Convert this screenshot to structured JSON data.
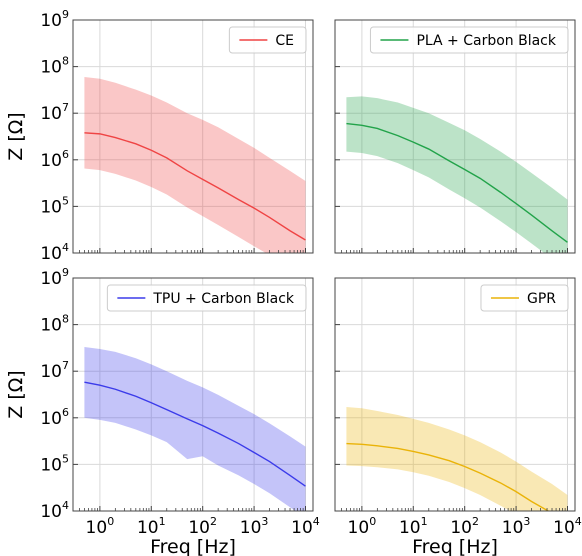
{
  "chart_data": [
    {
      "type": "area",
      "panel": "top-left",
      "series_name": "CE",
      "color": "#ef4444",
      "xscale": "log",
      "yscale": "log",
      "xlim": [
        0.3,
        14000
      ],
      "ylim": [
        10000,
        1000000000
      ],
      "xlabel": "",
      "ylabel": "Z [Ω]",
      "legend": "top-right",
      "grid": true,
      "x": [
        0.5,
        1,
        2,
        5,
        10,
        20,
        50,
        100,
        200,
        500,
        1000,
        2000,
        5000,
        10000
      ],
      "median": [
        3800000,
        3600000,
        3000000,
        2200000,
        1600000,
        1100000,
        580000,
        380000,
        250000,
        140000,
        92000,
        58000,
        30000,
        19000
      ],
      "upper": [
        60000000,
        55000000,
        45000000,
        32000000,
        24000000,
        17000000,
        10000000,
        7200000,
        5000000,
        2800000,
        1800000,
        1100000,
        580000,
        350000
      ],
      "lower": [
        650000,
        600000,
        500000,
        360000,
        260000,
        180000,
        95000,
        62000,
        40000,
        22000,
        14000,
        9000,
        5000,
        3000
      ]
    },
    {
      "type": "area",
      "panel": "top-right",
      "series_name": "PLA + Carbon Black",
      "color": "#22a34a",
      "xscale": "log",
      "yscale": "log",
      "xlim": [
        0.3,
        14000
      ],
      "ylim": [
        10000,
        1000000000
      ],
      "xlabel": "",
      "ylabel": "",
      "legend": "top-right",
      "grid": true,
      "x": [
        0.5,
        1,
        2,
        5,
        10,
        20,
        50,
        100,
        200,
        500,
        1000,
        2000,
        5000,
        10000
      ],
      "median": [
        6000000,
        5500000,
        4700000,
        3300000,
        2400000,
        1700000,
        950000,
        620000,
        400000,
        200000,
        115000,
        65000,
        30000,
        17000
      ],
      "upper": [
        22000000,
        23000000,
        21000000,
        17000000,
        13000000,
        10000000,
        6200000,
        4300000,
        2800000,
        1500000,
        900000,
        520000,
        250000,
        140000
      ],
      "lower": [
        1500000,
        1400000,
        1200000,
        850000,
        600000,
        420000,
        230000,
        150000,
        95000,
        48000,
        28000,
        16000,
        7500,
        4200
      ]
    },
    {
      "type": "area",
      "panel": "bottom-left",
      "series_name": "TPU + Carbon Black",
      "color": "#3b3bea",
      "xscale": "log",
      "yscale": "log",
      "xlim": [
        0.3,
        14000
      ],
      "ylim": [
        10000,
        1000000000
      ],
      "xlabel": "Freq [Hz]",
      "ylabel": "Z [Ω]",
      "legend": "top-right",
      "grid": true,
      "x": [
        0.5,
        1,
        2,
        5,
        10,
        20,
        50,
        100,
        200,
        500,
        1000,
        2000,
        5000,
        10000
      ],
      "median": [
        5800000,
        5000000,
        4100000,
        2900000,
        2100000,
        1500000,
        950000,
        680000,
        470000,
        280000,
        180000,
        115000,
        58000,
        34000
      ],
      "upper": [
        33000000,
        30000000,
        26000000,
        19000000,
        14000000,
        10000000,
        6200000,
        4500000,
        3100000,
        1800000,
        1200000,
        760000,
        400000,
        240000
      ],
      "lower": [
        1000000,
        900000,
        780000,
        560000,
        420000,
        300000,
        130000,
        150000,
        95000,
        58000,
        38000,
        24000,
        12000,
        7000
      ]
    },
    {
      "type": "area",
      "panel": "bottom-right",
      "series_name": "GPR",
      "color": "#eab308",
      "xscale": "log",
      "yscale": "log",
      "xlim": [
        0.3,
        14000
      ],
      "ylim": [
        10000,
        1000000000
      ],
      "xlabel": "Freq [Hz]",
      "ylabel": "",
      "legend": "top-right",
      "grid": true,
      "x": [
        0.5,
        1,
        2,
        5,
        10,
        20,
        50,
        100,
        200,
        500,
        1000,
        2000,
        5000,
        10000
      ],
      "median": [
        280000,
        270000,
        250000,
        220000,
        190000,
        160000,
        120000,
        90000,
        65000,
        40000,
        26000,
        16000,
        9000,
        5500
      ],
      "upper": [
        1700000,
        1600000,
        1400000,
        1150000,
        950000,
        780000,
        560000,
        420000,
        300000,
        180000,
        115000,
        70000,
        38000,
        22000
      ],
      "lower": [
        95000,
        92000,
        87000,
        78000,
        68000,
        57000,
        42000,
        31000,
        22000,
        13000,
        8500,
        5300,
        3000,
        1800
      ]
    }
  ],
  "ticks": {
    "x": [
      {
        "base": "10",
        "exp": "0"
      },
      {
        "base": "10",
        "exp": "1"
      },
      {
        "base": "10",
        "exp": "2"
      },
      {
        "base": "10",
        "exp": "3"
      },
      {
        "base": "10",
        "exp": "4"
      }
    ],
    "y": [
      {
        "base": "10",
        "exp": "4"
      },
      {
        "base": "10",
        "exp": "5"
      },
      {
        "base": "10",
        "exp": "6"
      },
      {
        "base": "10",
        "exp": "7"
      },
      {
        "base": "10",
        "exp": "8"
      },
      {
        "base": "10",
        "exp": "9"
      }
    ]
  },
  "style": {
    "grid_color": "#d9d9d9",
    "frame_color": "#444444"
  }
}
